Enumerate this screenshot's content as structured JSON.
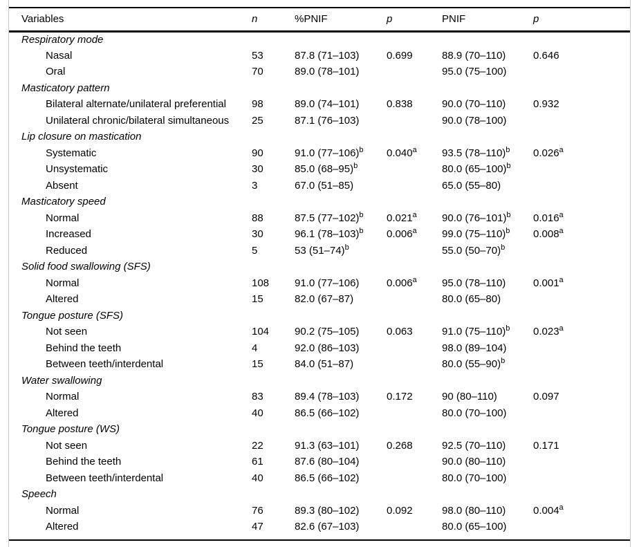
{
  "table": {
    "columns": [
      {
        "label": "Variables",
        "italic": false
      },
      {
        "label": "n",
        "italic": true
      },
      {
        "label": "%PNIF",
        "italic": false
      },
      {
        "label": "p",
        "italic": true
      },
      {
        "label": "PNIF",
        "italic": false
      },
      {
        "label": "p",
        "italic": true
      }
    ],
    "sections": [
      {
        "header": "Respiratory mode",
        "rows": [
          {
            "label": "Nasal",
            "n": "53",
            "pct": "87.8 (71–103)",
            "p1": "0.699",
            "pnif": "88.9 (70–110)",
            "p2": "0.646"
          },
          {
            "label": "Oral",
            "n": "70",
            "pct": "89.0 (78–101)",
            "pnif": "95.0 (75–100)"
          }
        ]
      },
      {
        "header": "Masticatory pattern",
        "rows": [
          {
            "label": "Bilateral alternate/unilateral preferential",
            "n": "98",
            "pct": "89.0 (74–101)",
            "p1": "0.838",
            "pnif": "90.0 (70–110)",
            "p2": "0.932"
          },
          {
            "label": "Unilateral chronic/bilateral simultaneous",
            "n": "25",
            "pct": "87.1 (76–103)",
            "pnif": "90.0 (78–100)"
          }
        ]
      },
      {
        "header": "Lip closure on mastication",
        "rows": [
          {
            "label": "Systematic",
            "n": "90",
            "pct": "91.0 (77–106)",
            "pct_sup": "b",
            "p1": "0.040",
            "p1_sup": "a",
            "pnif": "93.5 (78–110)",
            "pnif_sup": "b",
            "p2": "0.026",
            "p2_sup": "a"
          },
          {
            "label": "Unsystematic",
            "n": "30",
            "pct": "85.0 (68–95)",
            "pct_sup": "b",
            "pnif": "80.0 (65–100)",
            "pnif_sup": "b"
          },
          {
            "label": "Absent",
            "n": "3",
            "pct": "67.0 (51–85)",
            "pnif": "65.0 (55–80)"
          }
        ]
      },
      {
        "header": "Masticatory speed",
        "rows": [
          {
            "label": "Normal",
            "n": "88",
            "pct": "87.5 (77–102)",
            "pct_sup": "b",
            "p1": "0.021",
            "p1_sup": "a",
            "pnif": "90.0 (76–101)",
            "pnif_sup": "b",
            "p2": "0.016",
            "p2_sup": "a"
          },
          {
            "label": "Increased",
            "n": "30",
            "pct": "96.1 (78–103)",
            "pct_sup": "b",
            "p1": "0.006",
            "p1_sup": "a",
            "pnif": "99.0 (75–110)",
            "pnif_sup": "b",
            "p2": "0.008",
            "p2_sup": "a"
          },
          {
            "label": "Reduced",
            "n": "5",
            "pct": "53 (51–74)",
            "pct_sup": "b",
            "pnif": "55.0 (50–70)",
            "pnif_sup": "b"
          }
        ]
      },
      {
        "header": "Solid food swallowing (SFS)",
        "rows": [
          {
            "label": "Normal",
            "n": "108",
            "pct": "91.0 (77–106)",
            "p1": "0.006",
            "p1_sup": "a",
            "pnif": "95.0 (78–110)",
            "p2": "0.001",
            "p2_sup": "a"
          },
          {
            "label": "Altered",
            "n": "15",
            "pct": "82.0 (67–87)",
            "pnif": "80.0 (65–80)"
          }
        ]
      },
      {
        "header": "Tongue posture (SFS)",
        "rows": [
          {
            "label": "Not seen",
            "n": "104",
            "pct": "90.2 (75–105)",
            "p1": "0.063",
            "pnif": "91.0 (75–110)",
            "pnif_sup": "b",
            "p2": "0.023",
            "p2_sup": "a"
          },
          {
            "label": "Behind the teeth",
            "n": "4",
            "pct": "92.0 (86–103)",
            "pnif": "98.0 (89–104)"
          },
          {
            "label": "Between teeth/interdental",
            "n": "15",
            "pct": "84.0 (51–87)",
            "pnif": "80.0 (55–90)",
            "pnif_sup": "b"
          }
        ]
      },
      {
        "header": "Water swallowing",
        "rows": [
          {
            "label": "Normal",
            "n": "83",
            "pct": "89.4 (78–103)",
            "p1": "0.172",
            "pnif": "90 (80–110)",
            "p2": "0.097"
          },
          {
            "label": "Altered",
            "n": "40",
            "pct": "86.5 (66–102)",
            "pnif": "80.0 (70–100)"
          }
        ]
      },
      {
        "header": "Tongue posture (WS)",
        "rows": [
          {
            "label": "Not seen",
            "n": "22",
            "pct": "91.3 (63–101)",
            "p1": "0.268",
            "pnif": "92.5 (70–110)",
            "p2": "0.171"
          },
          {
            "label": "Behind the teeth",
            "n": "61",
            "pct": "87.6 (80–104)",
            "pnif": "90.0 (80–110)"
          },
          {
            "label": "Between teeth/interdental",
            "n": "40",
            "pct": "86.5 (66–102)",
            "pnif": "80.0 (70–100)"
          }
        ]
      },
      {
        "header": "Speech",
        "rows": [
          {
            "label": "Normal",
            "n": "76",
            "pct": "89.3 (80–102)",
            "p1": "0.092",
            "pnif": "98.0 (80–110)",
            "p2": "0.004",
            "p2_sup": "a"
          },
          {
            "label": "Altered",
            "n": "47",
            "pct": "82.6 (67–103)",
            "pnif": "80.0 (65–100)"
          }
        ]
      }
    ]
  }
}
